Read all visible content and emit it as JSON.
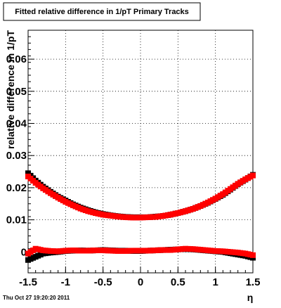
{
  "page_title": "Fitted relative difference in 1/pT  Primary Tracks",
  "datestamp": "Thu Oct 27 19:20:20 2011",
  "chart_data": {
    "type": "scatter",
    "title": "Fitted relative difference in 1/pT  Primary Tracks",
    "xlabel": "η",
    "ylabel": "relative difference in 1/pT",
    "xlim": [
      -1.5,
      1.5
    ],
    "ylim": [
      -0.0065,
      0.069
    ],
    "grid": true,
    "x_ticks": [
      -1.5,
      -1,
      -0.5,
      0,
      0.5,
      1,
      1.5
    ],
    "x_tick_labels": [
      "-1.5",
      "-1",
      "-0.5",
      "0",
      "0.5",
      "1",
      "1.5"
    ],
    "y_ticks": [
      0,
      0.01,
      0.02,
      0.03,
      0.04,
      0.05,
      0.06
    ],
    "y_tick_labels": [
      "0",
      "0.01",
      "0.02",
      "0.03",
      "0.04",
      "0.05",
      "0.06"
    ],
    "series": [
      {
        "color": "#000000",
        "marker": "square",
        "x": [
          -1.5,
          -1.4,
          -1.3,
          -1.2,
          -1.1,
          -1.0,
          -0.9,
          -0.8,
          -0.7,
          -0.6,
          -0.5,
          -0.4,
          -0.3,
          -0.2,
          -0.1,
          0.0,
          0.1,
          0.2,
          0.3,
          0.4,
          0.5,
          0.6,
          0.7,
          0.8,
          0.9,
          1.0,
          1.1,
          1.2,
          1.3,
          1.4,
          1.5
        ],
        "y": [
          0.0245,
          0.0222,
          0.0203,
          0.0187,
          0.0172,
          0.016,
          0.0148,
          0.0138,
          0.013,
          0.0123,
          0.0118,
          0.0114,
          0.0111,
          0.0109,
          0.0108,
          0.0108,
          0.0108,
          0.011,
          0.0112,
          0.0116,
          0.0121,
          0.0127,
          0.0134,
          0.0143,
          0.0153,
          0.0165,
          0.0178,
          0.0194,
          0.0211,
          0.0225,
          0.024
        ]
      },
      {
        "color": "#ff0000",
        "marker": "square",
        "x": [
          -1.5,
          -1.4,
          -1.3,
          -1.2,
          -1.1,
          -1.0,
          -0.9,
          -0.8,
          -0.7,
          -0.6,
          -0.5,
          -0.4,
          -0.3,
          -0.2,
          -0.1,
          0.0,
          0.1,
          0.2,
          0.3,
          0.4,
          0.5,
          0.6,
          0.7,
          0.8,
          0.9,
          1.0,
          1.1,
          1.2,
          1.3,
          1.4,
          1.5
        ],
        "y": [
          0.0235,
          0.0215,
          0.0198,
          0.0183,
          0.0169,
          0.0156,
          0.0145,
          0.0135,
          0.0127,
          0.0121,
          0.0116,
          0.0113,
          0.011,
          0.0108,
          0.0107,
          0.0107,
          0.0108,
          0.0109,
          0.0112,
          0.0116,
          0.0121,
          0.0127,
          0.0134,
          0.0143,
          0.0154,
          0.0166,
          0.018,
          0.0196,
          0.0212,
          0.0226,
          0.0238
        ]
      },
      {
        "color": "#000000",
        "marker": "square",
        "x": [
          -1.5,
          -1.4,
          -1.3,
          -1.2,
          -1.1,
          -1.0,
          -0.9,
          -0.8,
          -0.7,
          -0.6,
          -0.5,
          -0.4,
          -0.3,
          -0.2,
          -0.1,
          0.0,
          0.1,
          0.2,
          0.3,
          0.4,
          0.5,
          0.6,
          0.7,
          0.8,
          0.9,
          1.0,
          1.1,
          1.2,
          1.3,
          1.4,
          1.5
        ],
        "y": [
          -0.0025,
          -0.0015,
          -0.0005,
          -0.0002,
          0.0,
          0.0003,
          0.0004,
          0.0005,
          0.0004,
          0.0005,
          0.0006,
          0.0005,
          0.0004,
          0.0004,
          0.0003,
          0.0003,
          0.0004,
          0.0005,
          0.0006,
          0.0007,
          0.0008,
          0.0009,
          0.0008,
          0.0006,
          0.0004,
          0.0002,
          0.0,
          -0.0004,
          -0.0008,
          -0.0012,
          -0.0018
        ]
      },
      {
        "color": "#ff0000",
        "marker": "square",
        "x": [
          -1.5,
          -1.4,
          -1.3,
          -1.2,
          -1.1,
          -1.0,
          -0.9,
          -0.8,
          -0.7,
          -0.6,
          -0.5,
          -0.4,
          -0.3,
          -0.2,
          -0.1,
          0.0,
          0.1,
          0.2,
          0.3,
          0.4,
          0.5,
          0.6,
          0.7,
          0.8,
          0.9,
          1.0,
          1.1,
          1.2,
          1.3,
          1.4,
          1.5
        ],
        "y": [
          -0.0005,
          0.001,
          0.0005,
          0.0003,
          0.0002,
          0.0004,
          0.0005,
          0.0004,
          0.0004,
          0.0005,
          0.0005,
          0.0004,
          0.0003,
          0.0003,
          0.0004,
          0.0004,
          0.0004,
          0.0005,
          0.0006,
          0.0006,
          0.0008,
          0.001,
          0.0009,
          0.0007,
          0.0005,
          0.0003,
          0.0002,
          0.0,
          -0.0002,
          -0.0005,
          -0.001
        ]
      }
    ]
  }
}
